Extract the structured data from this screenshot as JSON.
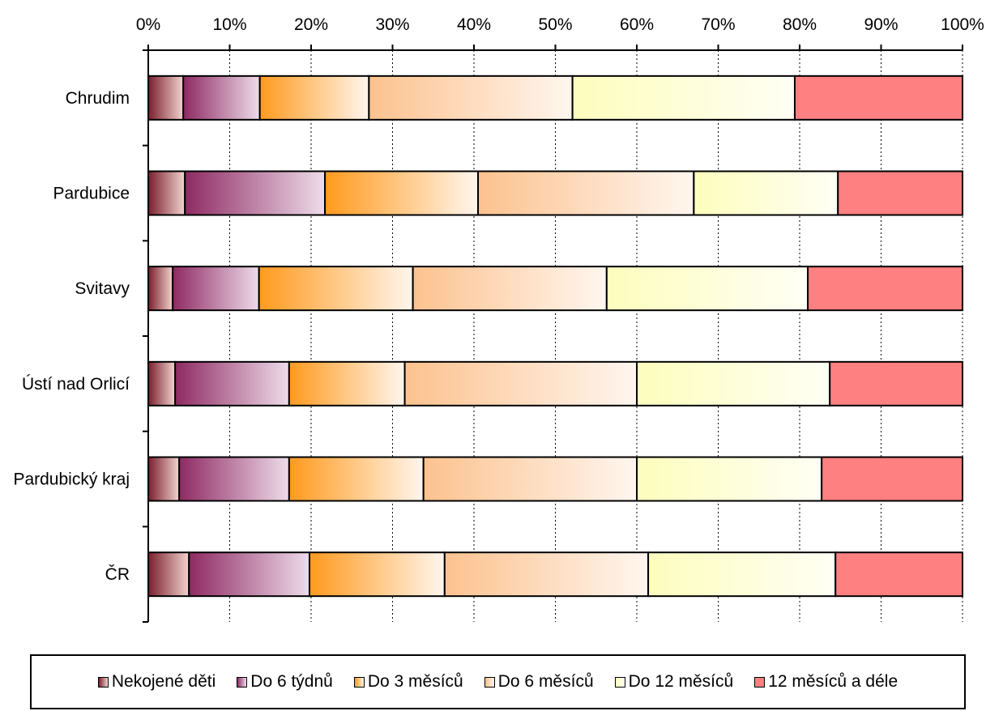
{
  "chart_data": {
    "type": "bar",
    "orientation": "horizontal",
    "stacked": "percent",
    "categories": [
      "Chrudim",
      "Pardubice",
      "Svitavy",
      "Ústí nad Orlicí",
      "Pardubický kraj",
      "ČR"
    ],
    "series": [
      {
        "name": "Nekojené děti",
        "values": [
          4.3,
          4.5,
          3.0,
          3.3,
          3.8,
          5.0
        ],
        "colors": [
          "#7a1e2c",
          "#f2d4cf"
        ]
      },
      {
        "name": "Do 6 týdnů",
        "values": [
          9.4,
          17.2,
          10.6,
          14.0,
          13.5,
          14.8
        ],
        "colors": [
          "#8e2a63",
          "#eedcea"
        ]
      },
      {
        "name": "Do 3 měsíců",
        "values": [
          13.4,
          18.8,
          18.9,
          14.2,
          16.5,
          16.6
        ],
        "colors": [
          "#ff9a1e",
          "#fff6ee"
        ]
      },
      {
        "name": "Do 6 měsíců",
        "values": [
          25.0,
          26.5,
          23.8,
          28.5,
          26.2,
          25.0
        ],
        "colors": [
          "#fcc28e",
          "#fff6ef"
        ]
      },
      {
        "name": "Do 12 měsíců",
        "values": [
          27.3,
          17.7,
          24.7,
          23.7,
          22.7,
          23.0
        ],
        "colors": [
          "#fdfdbd",
          "#fffff5"
        ]
      },
      {
        "name": "12 měsíců a déle",
        "values": [
          20.6,
          15.3,
          19.0,
          16.3,
          17.3,
          15.6
        ],
        "colors": [
          "#ff8080",
          "#ff8080"
        ]
      }
    ],
    "x_ticks": [
      "0%",
      "10%",
      "20%",
      "30%",
      "40%",
      "50%",
      "60%",
      "70%",
      "80%",
      "90%",
      "100%"
    ],
    "xlim": [
      0,
      100
    ],
    "grid": "vertical-dotted",
    "legend_position": "bottom"
  }
}
